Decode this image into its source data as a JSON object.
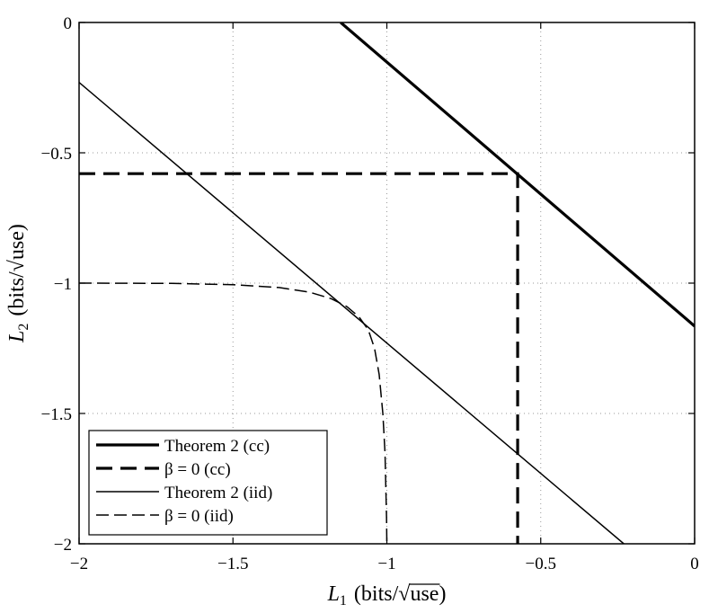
{
  "chart_data": {
    "type": "line",
    "title": "",
    "xlabel_var": "L",
    "xlabel_sub": "1",
    "xlabel_unit_pre": "(bits/",
    "xlabel_unit_root": "use",
    "xlabel_unit_post": ")",
    "ylabel_var": "L",
    "ylabel_sub": "2",
    "ylabel_unit_pre": "(bits/",
    "ylabel_unit_root": "use",
    "ylabel_unit_post": ")",
    "xlim": [
      -2,
      0
    ],
    "ylim": [
      -2,
      0
    ],
    "grid": true,
    "legend_position": "bottom-left",
    "xticks": [
      -2,
      -1.5,
      -1,
      -0.5,
      0
    ],
    "xtick_labels": [
      "−2",
      "−1.5",
      "−1",
      "−0.5",
      "0"
    ],
    "yticks": [
      0,
      -0.5,
      -1,
      -1.5,
      -2
    ],
    "ytick_labels": [
      "0",
      "−0.5",
      "−1",
      "−1.5",
      "−2"
    ],
    "series": [
      {
        "name": "Theorem 2 (cc)",
        "style": "solid-thick",
        "x": [
          -1.15,
          0
        ],
        "y": [
          0,
          -1.165
        ]
      },
      {
        "name": "β = 0 (cc)",
        "style": "dashed-thick",
        "x": [
          -2,
          -0.575,
          -0.575
        ],
        "y": [
          -0.58,
          -0.58,
          -2
        ]
      },
      {
        "name": "Theorem 2 (iid)",
        "style": "solid-thin",
        "x": [
          -2,
          -0.23
        ],
        "y": [
          -0.23,
          -2
        ]
      },
      {
        "name": "β = 0 (iid)",
        "style": "dashed-thin",
        "x": [
          -2,
          -1.7,
          -1.5,
          -1.35,
          -1.25,
          -1.18,
          -1.13,
          -1.09,
          -1.06,
          -1.04,
          -1.025,
          -1.013,
          -1.006,
          -1.003,
          -1.001,
          -1.0
        ],
        "y": [
          -1.0,
          -1.001,
          -1.006,
          -1.017,
          -1.035,
          -1.06,
          -1.09,
          -1.13,
          -1.18,
          -1.25,
          -1.35,
          -1.5,
          -1.65,
          -1.8,
          -1.9,
          -2.0
        ]
      }
    ]
  }
}
